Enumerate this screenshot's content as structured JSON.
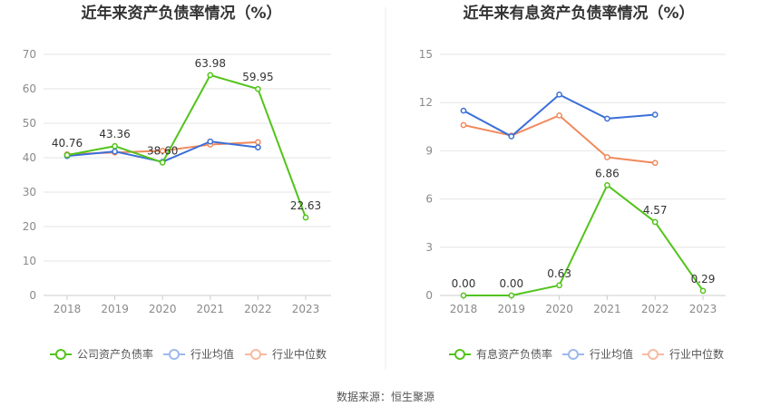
{
  "source_label": "数据来源：恒生聚源",
  "chart_data": [
    {
      "type": "line",
      "title": "近年来资产负债率情况（%）",
      "categories": [
        "2018",
        "2019",
        "2020",
        "2021",
        "2022",
        "2023"
      ],
      "ylim": [
        0,
        70
      ],
      "yticks": [
        0,
        10,
        20,
        30,
        40,
        50,
        60,
        70
      ],
      "grid": true,
      "legend_position": "bottom",
      "series": [
        {
          "name": "公司资产负债率",
          "color": "#52c41a",
          "values": [
            40.76,
            43.36,
            38.6,
            63.98,
            59.95,
            22.63
          ],
          "labels": [
            "40.76",
            "43.36",
            "38.60",
            "63.98",
            "59.95",
            "22.63"
          ]
        },
        {
          "name": "行业均值",
          "color": "#3b6fd8",
          "values": [
            40.5,
            41.8,
            38.8,
            44.7,
            43.0,
            null
          ]
        },
        {
          "name": "行业中位数",
          "color": "#f08a5d",
          "values": [
            41.0,
            41.5,
            42.0,
            43.8,
            44.5,
            null
          ]
        }
      ]
    },
    {
      "type": "line",
      "title": "近年来有息资产负债率情况（%）",
      "categories": [
        "2018",
        "2019",
        "2020",
        "2021",
        "2022",
        "2023"
      ],
      "ylim": [
        0,
        15
      ],
      "yticks": [
        0,
        3,
        6,
        9,
        12,
        15
      ],
      "grid": true,
      "legend_position": "bottom",
      "series": [
        {
          "name": "有息资产负债率",
          "color": "#52c41a",
          "values": [
            0.0,
            0.0,
            0.63,
            6.86,
            4.57,
            0.29
          ],
          "labels": [
            "0.00",
            "0.00",
            "0.63",
            "6.86",
            "4.57",
            "0.29"
          ]
        },
        {
          "name": "行业均值",
          "color": "#3b6fd8",
          "values": [
            11.5,
            9.9,
            12.5,
            11.0,
            11.25,
            null
          ]
        },
        {
          "name": "行业中位数",
          "color": "#f08a5d",
          "values": [
            10.6,
            9.95,
            11.2,
            8.6,
            8.25,
            null
          ]
        }
      ]
    }
  ]
}
